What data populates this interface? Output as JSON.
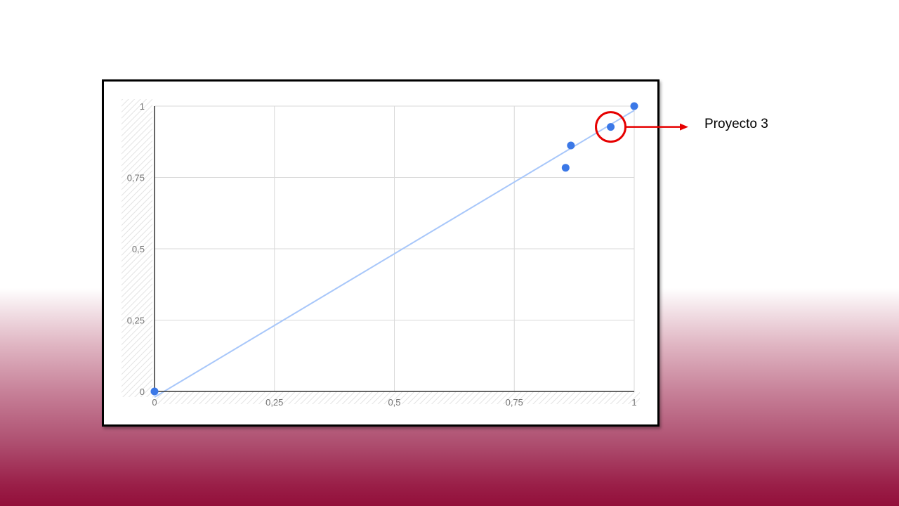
{
  "chart_data": {
    "type": "scatter",
    "title": "",
    "xlabel": "",
    "ylabel": "",
    "xlim": [
      0,
      1
    ],
    "ylim": [
      0,
      1
    ],
    "x_ticks": [
      0,
      0.25,
      0.5,
      0.75,
      1
    ],
    "x_tick_labels": [
      "0",
      "0,25",
      "0,5",
      "0,75",
      "1"
    ],
    "y_ticks": [
      0,
      0.25,
      0.5,
      0.75,
      1
    ],
    "y_tick_labels": [
      "0",
      "0,25",
      "0,5",
      "0,75",
      "1"
    ],
    "grid": true,
    "series": [
      {
        "points": [
          {
            "x": 0,
            "y": 0
          },
          {
            "x": 0.857,
            "y": 0.784
          },
          {
            "x": 0.868,
            "y": 0.862
          },
          {
            "x": 0.951,
            "y": 0.927
          },
          {
            "x": 1,
            "y": 1
          }
        ],
        "color": "#3b78e7"
      }
    ],
    "trendline": {
      "x": [
        0,
        1
      ],
      "y": [
        -0.02,
        0.985
      ],
      "color": "#a8c7fa"
    },
    "highlight_index": 3,
    "highlight_color": "#e60000",
    "grid_color": "#d9d9d9",
    "axis_color": "#333333"
  },
  "annotation": {
    "label": "Proyecto 3"
  }
}
